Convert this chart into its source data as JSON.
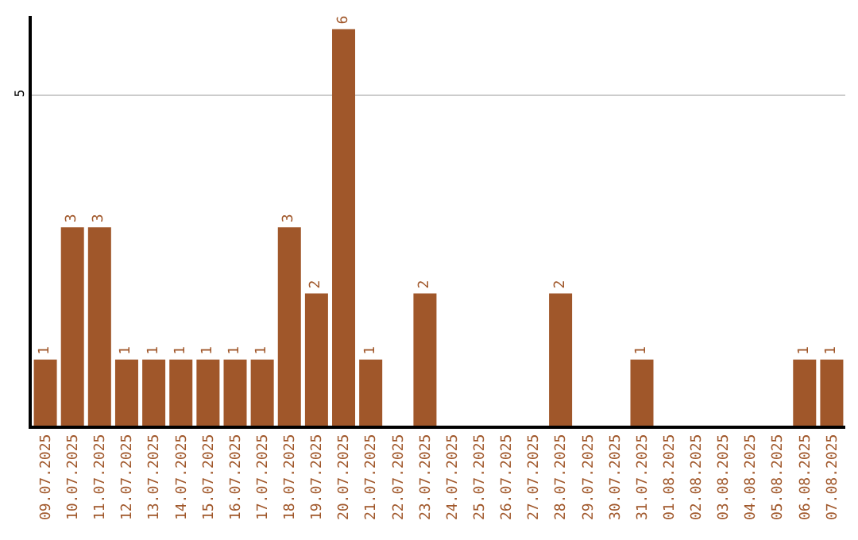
{
  "chart_data": {
    "type": "bar",
    "categories": [
      "09.07.2025",
      "10.07.2025",
      "11.07.2025",
      "12.07.2025",
      "13.07.2025",
      "14.07.2025",
      "15.07.2025",
      "16.07.2025",
      "17.07.2025",
      "18.07.2025",
      "19.07.2025",
      "20.07.2025",
      "21.07.2025",
      "22.07.2025",
      "23.07.2025",
      "24.07.2025",
      "25.07.2025",
      "26.07.2025",
      "27.07.2025",
      "28.07.2025",
      "29.07.2025",
      "30.07.2025",
      "31.07.2025",
      "01.08.2025",
      "02.08.2025",
      "03.08.2025",
      "04.08.2025",
      "05.08.2025",
      "06.08.2025",
      "07.08.2025"
    ],
    "values": [
      1,
      3,
      3,
      1,
      1,
      1,
      1,
      1,
      1,
      3,
      2,
      6,
      1,
      0,
      2,
      0,
      0,
      0,
      0,
      2,
      0,
      0,
      1,
      0,
      0,
      0,
      0,
      0,
      1,
      1
    ],
    "value_labels": [
      "1",
      "3",
      "3",
      "1",
      "1",
      "1",
      "1",
      "1",
      "1",
      "3",
      "2",
      "6",
      "1",
      null,
      "2",
      null,
      null,
      null,
      null,
      "2",
      null,
      null,
      "1",
      null,
      null,
      null,
      null,
      null,
      "1",
      "1"
    ],
    "color": "#a0572a",
    "ylim": [
      0,
      6.2
    ],
    "yticks": [
      5
    ],
    "grid": "y"
  }
}
